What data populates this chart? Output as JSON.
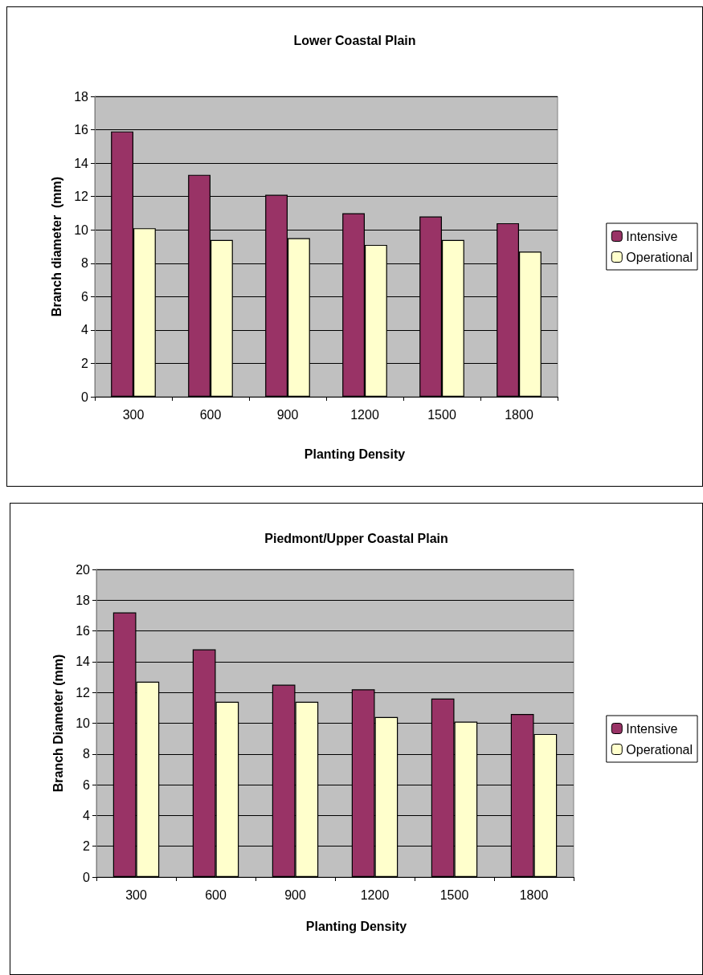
{
  "chart_data": [
    {
      "type": "bar",
      "title": "Lower Coastal Plain",
      "xlabel": "Planting Density",
      "ylabel": "Branch diameter  (mm)",
      "categories": [
        "300",
        "600",
        "900",
        "1200",
        "1500",
        "1800"
      ],
      "series": [
        {
          "name": "Intensive",
          "color": "#993366",
          "values": [
            15.9,
            13.3,
            12.1,
            11.0,
            10.8,
            10.4
          ]
        },
        {
          "name": "Operational",
          "color": "#ffffcc",
          "values": [
            10.1,
            9.4,
            9.5,
            9.1,
            9.4,
            8.7
          ]
        }
      ],
      "ylim": [
        0,
        18
      ],
      "yticks": [
        0,
        2,
        4,
        6,
        8,
        10,
        12,
        14,
        16,
        18
      ],
      "grid": "y",
      "legend": "right"
    },
    {
      "type": "bar",
      "title": "Piedmont/Upper Coastal Plain",
      "xlabel": "Planting Density",
      "ylabel": "Branch Diameter (mm)",
      "categories": [
        "300",
        "600",
        "900",
        "1200",
        "1500",
        "1800"
      ],
      "series": [
        {
          "name": "Intensive",
          "color": "#993366",
          "values": [
            17.2,
            14.8,
            12.5,
            12.2,
            11.6,
            10.6
          ]
        },
        {
          "name": "Operational",
          "color": "#ffffcc",
          "values": [
            12.7,
            11.4,
            11.4,
            10.4,
            10.1,
            9.3
          ]
        }
      ],
      "ylim": [
        0,
        20
      ],
      "yticks": [
        0,
        2,
        4,
        6,
        8,
        10,
        12,
        14,
        16,
        18,
        20
      ],
      "grid": "y",
      "legend": "right"
    }
  ]
}
